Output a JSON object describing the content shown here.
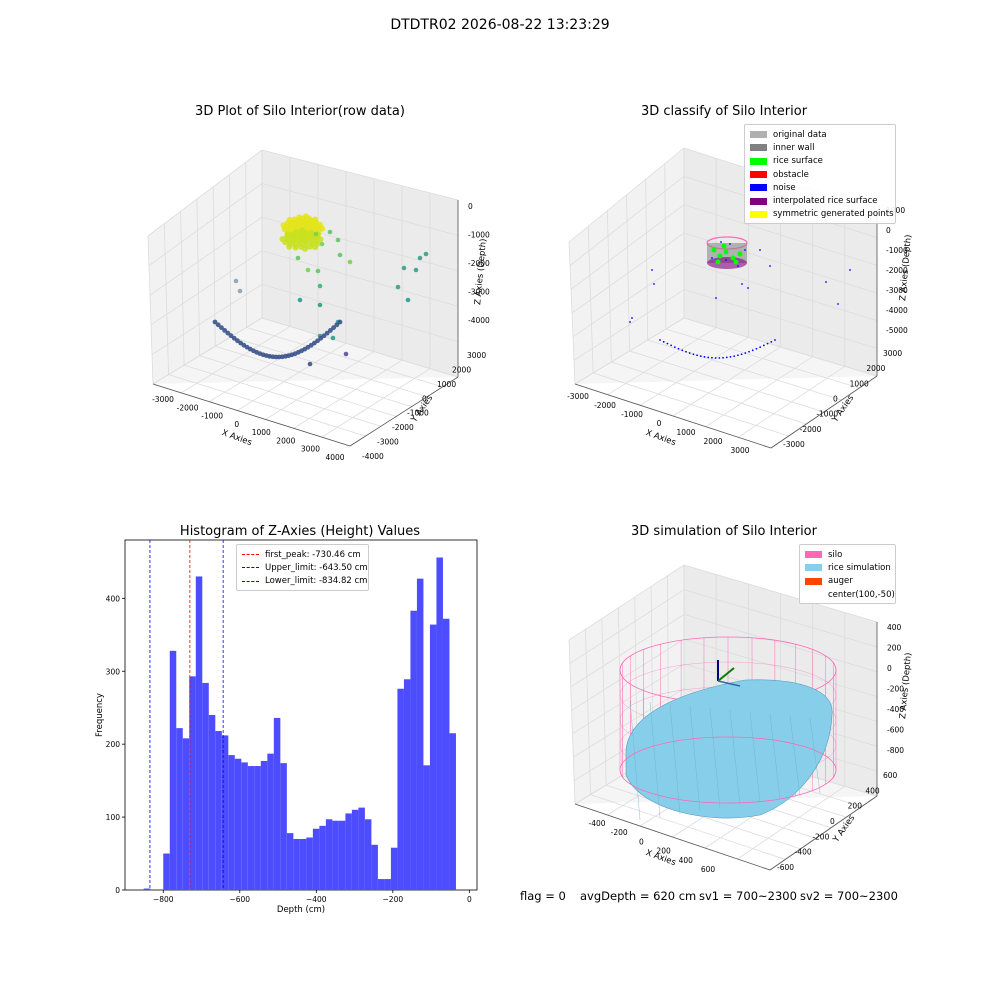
{
  "suptitle": "DTDTR02 2026-08-22 13:23:29",
  "panels": {
    "raw": {
      "title": "3D Plot of Silo Interior(row data)",
      "x_label": "X Axies",
      "y_label": "Y Axies",
      "z_label": "Z Axies (Depth)",
      "x_ticks": [
        "-3000",
        "-2000",
        "-1000",
        "0",
        "1000",
        "2000",
        "3000",
        "4000"
      ],
      "y_ticks": [
        "-4000",
        "-3000",
        "-2000",
        "-1000",
        "0",
        "1000",
        "2000",
        "3000"
      ],
      "z_ticks": [
        "-4000",
        "-3000",
        "-2000",
        "-1000",
        "0"
      ]
    },
    "classify": {
      "title": "3D classify of Silo Interior",
      "x_label": "X Axies",
      "y_label": "Y Axies",
      "z_label": "Z Axies (Depth)",
      "x_ticks": [
        "-3000",
        "-2000",
        "-1000",
        "0",
        "1000",
        "2000",
        "3000"
      ],
      "y_ticks": [
        "-3000",
        "-2000",
        "-1000",
        "0",
        "1000",
        "2000",
        "3000"
      ],
      "z_ticks": [
        "-5000",
        "-4000",
        "-3000",
        "-2000",
        "-1000",
        "0",
        "1000"
      ],
      "legend": [
        {
          "label": "original data",
          "color": "#b0b0b0"
        },
        {
          "label": "inner wall",
          "color": "#808080"
        },
        {
          "label": "rice surface",
          "color": "#00ff00"
        },
        {
          "label": "obstacle",
          "color": "#ff0000"
        },
        {
          "label": "noise",
          "color": "#0000ff"
        },
        {
          "label": "interpolated rice surface",
          "color": "#800080"
        },
        {
          "label": "symmetric generated points",
          "color": "#ffff00"
        }
      ]
    },
    "histogram": {
      "title": "Histogram of Z-Axies (Height) Values",
      "legend": [
        {
          "label": "first_peak: -730.46 cm",
          "color": "#ff0000"
        },
        {
          "label": "Upper_limit: -643.50 cm",
          "color": "#0000ff"
        },
        {
          "label": "Lower_limit: -834.82 cm",
          "color": "#0000ff"
        }
      ]
    },
    "simulation": {
      "title": "3D simulation of Silo Interior",
      "x_label": "X Axies",
      "y_label": "Y Axies",
      "z_label": "Z Axies (Depth)",
      "x_ticks": [
        "-400",
        "-200",
        "0",
        "200",
        "400",
        "600"
      ],
      "y_ticks": [
        "-600",
        "-400",
        "-200",
        "0",
        "200",
        "400",
        "600"
      ],
      "z_ticks": [
        "-800",
        "-600",
        "-400",
        "-200",
        "0",
        "200",
        "400"
      ],
      "legend": [
        {
          "label": "silo",
          "color": "#ff69b4"
        },
        {
          "label": "rice simulation",
          "color": "#87ceeb"
        },
        {
          "label": "auger",
          "color": "#ff4500"
        },
        {
          "label": "center(100,-50)",
          "color": ""
        }
      ]
    }
  },
  "status": {
    "flag": "flag = 0",
    "avg_depth": "avgDepth = 620 cm",
    "sv1": "sv1 = 700~2300",
    "sv2": "sv2 = 700~2300"
  },
  "chart_data": [
    {
      "type": "scatter",
      "title": "3D Plot of Silo Interior(row data)",
      "xlabel": "X Axies",
      "ylabel": "Y Axies",
      "zlabel": "Z Axies (Depth)",
      "xlim": [
        -3000,
        4000
      ],
      "ylim": [
        -4000,
        3000
      ],
      "zlim": [
        -4500,
        500
      ],
      "colormap": "viridis",
      "note_series": [
        {
          "x": [
            -700,
            -500,
            -300,
            -100
          ],
          "y": [
            700,
            900,
            1100,
            1000
          ],
          "z": [
            -300,
            -350,
            -400,
            -320
          ]
        },
        {
          "x": [
            -1500,
            -1000,
            -500,
            0,
            500,
            1000,
            1500,
            2000
          ],
          "y": [
            -2500,
            -2700,
            -2900,
            -3000,
            -3000,
            -2900,
            -2700,
            -2500
          ],
          "z": [
            -4200,
            -4250,
            -4300,
            -4300,
            -4300,
            -4250,
            -4200,
            -4150
          ]
        }
      ],
      "grid": true
    },
    {
      "type": "scatter",
      "title": "3D classify of Silo Interior",
      "xlabel": "X Axies",
      "ylabel": "Y Axies",
      "zlabel": "Z Axies (Depth)",
      "xlim": [
        -3000,
        3500
      ],
      "ylim": [
        -3500,
        3000
      ],
      "zlim": [
        -5500,
        1500
      ],
      "series": [
        {
          "name": "rice surface",
          "x": [
            -300,
            -200,
            -100,
            0,
            100
          ],
          "y": [
            0,
            100,
            200,
            100,
            0
          ],
          "z": [
            -700,
            -650,
            -700,
            -680,
            -720
          ]
        },
        {
          "name": "noise",
          "x": [
            -1500,
            -1000,
            -500,
            0,
            500,
            1000,
            1500
          ],
          "y": [
            -2500,
            -2800,
            -3000,
            -3000,
            -2900,
            -2700,
            -2500
          ],
          "z": [
            -4200,
            -4250,
            -4300,
            -4300,
            -4250,
            -4200,
            -4150
          ]
        }
      ],
      "legend_position": "top-right",
      "grid": true
    },
    {
      "type": "bar",
      "title": "Histogram of Z-Axies (Height) Values",
      "xlabel": "Depth (cm)",
      "ylabel": "Frequency",
      "xlim": [
        -900,
        20
      ],
      "ylim": [
        0,
        480
      ],
      "bin_start": -851,
      "bin_width": 17.0,
      "values": [
        2,
        0,
        0,
        50,
        328,
        222,
        208,
        293,
        430,
        284,
        240,
        218,
        212,
        185,
        180,
        175,
        170,
        170,
        177,
        187,
        236,
        174,
        78,
        70,
        70,
        72,
        84,
        88,
        97,
        95,
        95,
        105,
        110,
        113,
        97,
        62,
        15,
        15,
        58,
        276,
        289,
        383,
        427,
        171,
        364,
        456,
        372,
        215
      ],
      "x_ticks": [
        -800,
        -600,
        -400,
        -200,
        0
      ],
      "y_ticks": [
        0,
        100,
        200,
        300,
        400
      ],
      "vlines": [
        {
          "name": "first_peak",
          "x": -730.46,
          "color": "#ff0000"
        },
        {
          "name": "Upper_limit",
          "x": -643.5,
          "color": "#0000ff"
        },
        {
          "name": "Lower_limit",
          "x": -834.82,
          "color": "#0000ff"
        }
      ],
      "bar_color": "#4d4dff",
      "legend_position": "top-center",
      "grid": false
    },
    {
      "type": "scatter",
      "title": "3D simulation of Silo Interior",
      "xlabel": "X Axies",
      "ylabel": "Y Axies",
      "zlabel": "Z Axies (Depth)",
      "xlim": [
        -500,
        700
      ],
      "ylim": [
        -700,
        700
      ],
      "zlim": [
        -900,
        450
      ],
      "series": [
        {
          "name": "silo",
          "shape": "cylinder",
          "center": [
            100,
            -50
          ],
          "z_range": [
            -800,
            300
          ]
        },
        {
          "name": "rice simulation",
          "shape": "surface",
          "z_mean": -620
        },
        {
          "name": "auger",
          "x": [
            100
          ],
          "y": [
            -50
          ],
          "z": [
            0
          ]
        }
      ],
      "legend_position": "top-right",
      "grid": true
    }
  ]
}
